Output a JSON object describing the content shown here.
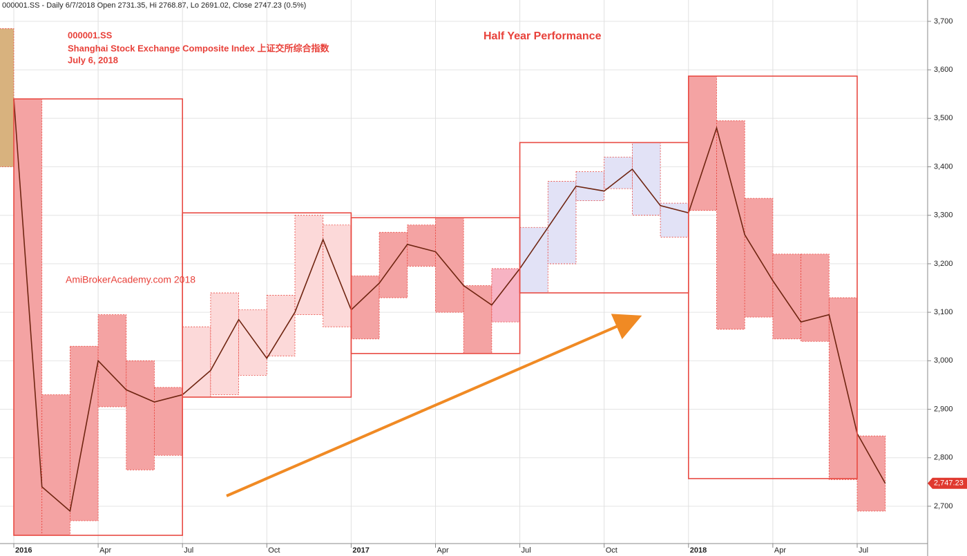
{
  "chart_data": {
    "type": "range-box",
    "header": "000001.SS - Daily 6/7/2018 Open 2731.35, Hi 2768.87, Lo 2691.02, Close 2747.23 (0.5%)",
    "annotations": [
      "000001.SS",
      "Shanghai Stock Exchange Composite Index 上证交所综合指数",
      "July 6, 2018",
      "Half Year Performance",
      "AmiBrokerAcademy.com  2018"
    ],
    "categories": [
      null,
      "2016",
      null,
      null,
      "Apr",
      null,
      null,
      "Jul",
      null,
      null,
      "Oct",
      null,
      null,
      "2017",
      null,
      null,
      "Apr",
      null,
      null,
      "Jul",
      null,
      null,
      "Oct",
      null,
      null,
      "2018",
      null,
      null,
      "Apr",
      null,
      null,
      "Jul"
    ],
    "monthly_high": [
      3685,
      3540,
      2930,
      3030,
      3095,
      3000,
      2945,
      3070,
      3140,
      3105,
      3135,
      3300,
      3280,
      3175,
      3265,
      3280,
      3295,
      3155,
      3190,
      3275,
      3370,
      3390,
      3420,
      3450,
      3325,
      3587,
      3495,
      3335,
      3220,
      3220,
      3130,
      2845
    ],
    "monthly_low": [
      3400,
      2640,
      2640,
      2670,
      2905,
      2775,
      2805,
      2925,
      2930,
      2970,
      3010,
      3095,
      3070,
      3045,
      3130,
      3195,
      3100,
      3015,
      3080,
      3140,
      3200,
      3330,
      3355,
      3300,
      3255,
      3310,
      3065,
      3090,
      3045,
      3040,
      2755,
      2690
    ],
    "monthly_colors": [
      "#d8b27e",
      "#f4a3a3",
      "#f4a3a3",
      "#f4a3a3",
      "#f4a3a3",
      "#f4a3a3",
      "#f4a3a3",
      "#fcd9d9",
      "#fcd9d9",
      "#fcd9d9",
      "#fcd9d9",
      "#fcd9d9",
      "#fcd9d9",
      "#f4a3a3",
      "#f4a3a3",
      "#f4a3a3",
      "#f4a3a3",
      "#f4a3a3",
      "#f7b3c3",
      "#e2e2f6",
      "#e2e2f6",
      "#e2e2f6",
      "#e2e2f6",
      "#e2e2f6",
      "#e2e2f6",
      "#f4a3a3",
      "#f4a3a3",
      "#f4a3a3",
      "#f4a3a3",
      "#f4a3a3",
      "#f4a3a3",
      "#f4a3a3"
    ],
    "series": [
      {
        "name": "Close",
        "color": "#6e2410",
        "values": [
          3540,
          2740,
          2690,
          3000,
          2940,
          2915,
          2930,
          2980,
          3085,
          3005,
          3100,
          3250,
          3105,
          3160,
          3240,
          3225,
          3155,
          3115,
          3190,
          3275,
          3360,
          3350,
          3395,
          3320,
          3305,
          3480,
          3260,
          3165,
          3080,
          3095,
          2850,
          2747.23
        ]
      }
    ],
    "half_year_high": [
      3540,
      3305,
      3295,
      3450,
      3587
    ],
    "half_year_low": [
      2640,
      2925,
      3015,
      3140,
      2757
    ],
    "half_year_color": "#e84a42",
    "last_price": {
      "value": 2747.23,
      "label": "2,747.23"
    },
    "ylim": [
      2623,
      3744
    ],
    "yticks": [
      {
        "value": 2700,
        "label": "2,700"
      },
      {
        "value": 2800,
        "label": "2,800"
      },
      {
        "value": 2900,
        "label": "2,900"
      },
      {
        "value": 3000,
        "label": "3,000"
      },
      {
        "value": 3100,
        "label": "3,100"
      },
      {
        "value": 3200,
        "label": "3,200"
      },
      {
        "value": 3300,
        "label": "3,300"
      },
      {
        "value": 3400,
        "label": "3,400"
      },
      {
        "value": 3500,
        "label": "3,500"
      },
      {
        "value": 3600,
        "label": "3,600"
      },
      {
        "value": 3700,
        "label": "3,700"
      }
    ],
    "grid": true
  }
}
